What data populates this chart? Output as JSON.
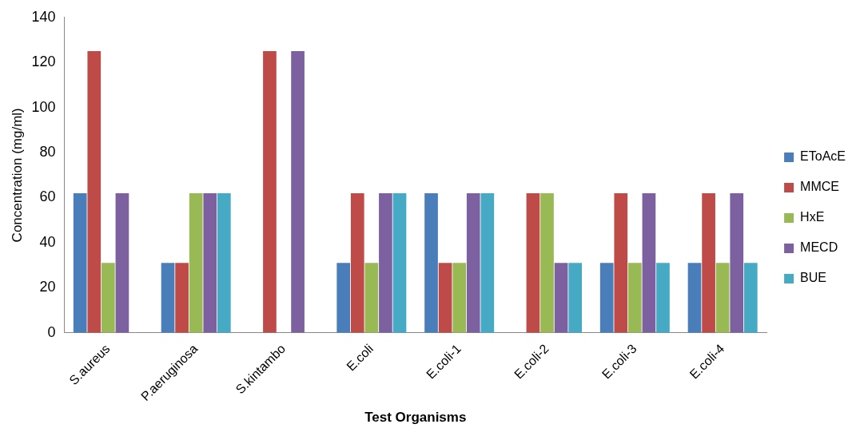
{
  "chart_data": {
    "type": "bar",
    "xlabel": "Test Organisms",
    "ylabel": "Concentration (mg/ml)",
    "categories": [
      "S.aureus",
      "P.aeruginosa",
      "S.kintambo",
      "E.coli",
      "E.coli-1",
      "E.coli-2",
      "E.coli-3",
      "E.coli-4"
    ],
    "series": [
      {
        "name": "EToAcE",
        "color": "#4a7ebb",
        "values": [
          62,
          31,
          0,
          31,
          62,
          0,
          31,
          31
        ]
      },
      {
        "name": "MMCE",
        "color": "#be4b48",
        "values": [
          125,
          31,
          125,
          62,
          31,
          62,
          62,
          62
        ]
      },
      {
        "name": "HxE",
        "color": "#98b954",
        "values": [
          31,
          62,
          0,
          31,
          31,
          62,
          31,
          31
        ]
      },
      {
        "name": "MECD",
        "color": "#7d60a0",
        "values": [
          62,
          62,
          125,
          62,
          62,
          31,
          62,
          62
        ]
      },
      {
        "name": "BUE",
        "color": "#46aac5",
        "values": [
          0,
          62,
          0,
          62,
          62,
          31,
          31,
          31
        ]
      }
    ],
    "ylim": [
      0,
      140
    ],
    "yticks": [
      0,
      20,
      40,
      60,
      80,
      100,
      120,
      140
    ],
    "grid": false,
    "legend": "right"
  }
}
